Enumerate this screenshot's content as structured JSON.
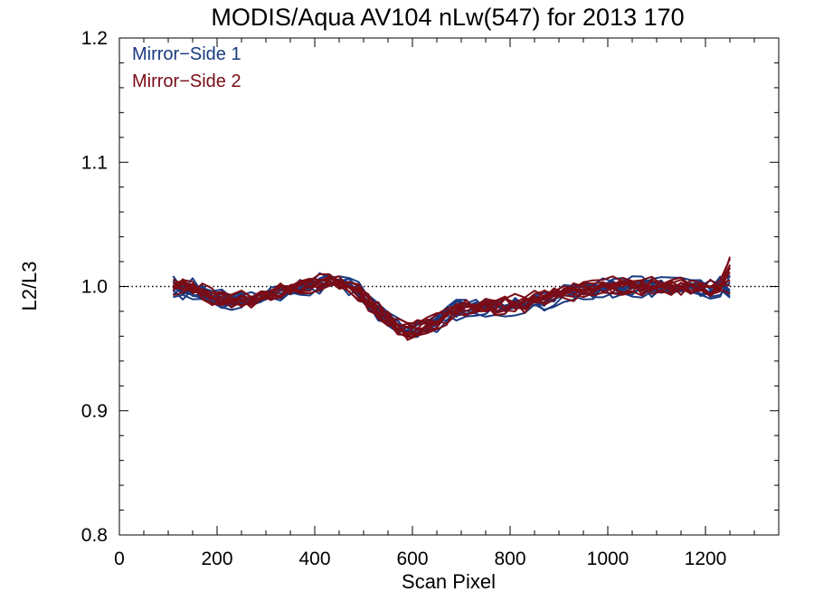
{
  "chart_data": {
    "type": "line",
    "title": "MODIS/Aqua AV104 nLw(547) for 2013 170",
    "xlabel": "Scan Pixel",
    "ylabel": "L2/L3",
    "xlim": [
      0,
      1350
    ],
    "ylim": [
      0.8,
      1.2
    ],
    "xticks": [
      0,
      200,
      400,
      600,
      800,
      1000,
      1200
    ],
    "yticks": [
      0.8,
      0.9,
      1.0,
      1.1,
      1.2
    ],
    "xtick_labels": [
      "0",
      "200",
      "400",
      "600",
      "800",
      "1000",
      "1200"
    ],
    "ytick_labels": [
      "0.8",
      "0.9",
      "1.0",
      "1.1",
      "1.2"
    ],
    "x_minor_step": 50,
    "y_minor_step": 0.02,
    "reference_line": {
      "y": 1.0,
      "style": "dotted"
    },
    "legend_position": "top-left",
    "legend": [
      {
        "name": "Mirror−Side 1",
        "color": "#1a3a80"
      },
      {
        "name": "Mirror−Side 2",
        "color": "#7a0c16"
      }
    ],
    "x": [
      110,
      130,
      150,
      170,
      190,
      210,
      230,
      250,
      270,
      290,
      310,
      330,
      350,
      370,
      390,
      410,
      430,
      450,
      470,
      490,
      510,
      530,
      550,
      570,
      590,
      610,
      630,
      650,
      670,
      690,
      710,
      730,
      750,
      770,
      790,
      810,
      830,
      850,
      870,
      890,
      910,
      930,
      950,
      970,
      990,
      1010,
      1030,
      1050,
      1070,
      1090,
      1110,
      1130,
      1150,
      1170,
      1190,
      1210,
      1230,
      1250
    ],
    "base_profile": [
      1.0,
      0.999,
      0.998,
      0.996,
      0.992,
      0.99,
      0.989,
      0.989,
      0.99,
      0.992,
      0.994,
      0.996,
      0.998,
      1.0,
      1.002,
      1.003,
      1.004,
      1.003,
      1.0,
      0.995,
      0.988,
      0.98,
      0.973,
      0.968,
      0.965,
      0.965,
      0.968,
      0.972,
      0.977,
      0.981,
      0.983,
      0.984,
      0.984,
      0.984,
      0.985,
      0.986,
      0.987,
      0.989,
      0.99,
      0.992,
      0.994,
      0.996,
      0.998,
      0.999,
      1.0,
      1.0,
      1.0,
      1.0,
      1.0,
      1.0,
      1.0,
      1.0,
      0.999,
      0.999,
      0.998,
      0.998,
      1.0,
      1.003
    ],
    "series_spread": 0.008,
    "series": [
      {
        "name": "Mirror−Side 1",
        "color": "#1a3a80",
        "count": 10
      },
      {
        "name": "Mirror−Side 2",
        "color": "#7a0c16",
        "count": 10
      }
    ]
  }
}
